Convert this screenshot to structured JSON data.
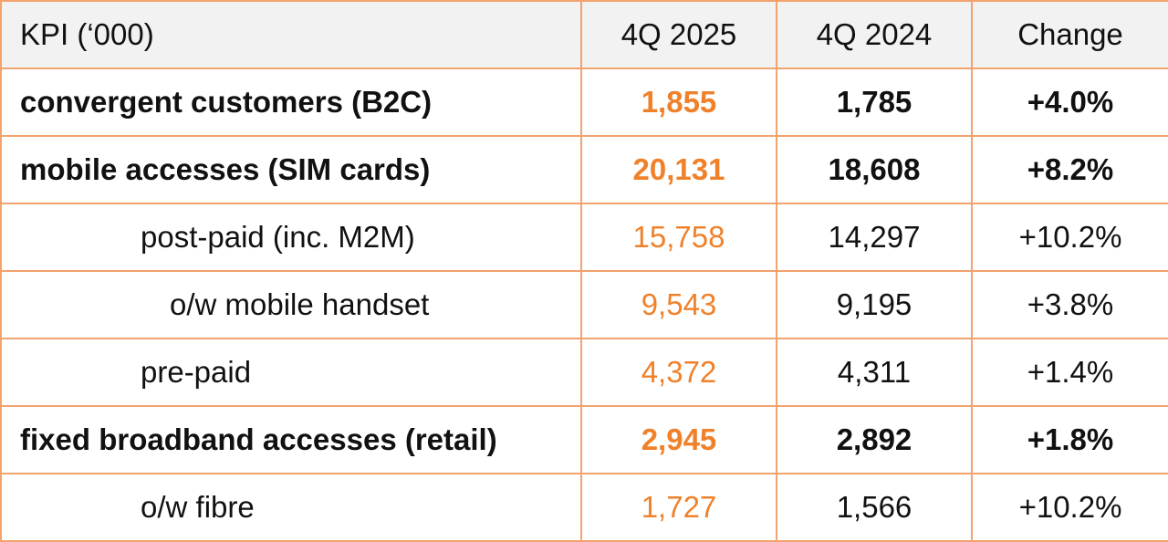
{
  "header": {
    "kpi": "KPI (‘000)",
    "col1": "4Q 2025",
    "col2": "4Q 2024",
    "col3": "Change"
  },
  "rows": [
    {
      "label": "convergent customers (B2C)",
      "q4_2025": "1,855",
      "q4_2024": "1,785",
      "change": "+4.0%"
    },
    {
      "label": "mobile accesses (SIM cards)",
      "q4_2025": "20,131",
      "q4_2024": "18,608",
      "change": "+8.2%"
    },
    {
      "label": "post-paid (inc. M2M)",
      "q4_2025": "15,758",
      "q4_2024": "14,297",
      "change": "+10.2%"
    },
    {
      "label": "o/w mobile handset",
      "q4_2025": "9,543",
      "q4_2024": "9,195",
      "change": "+3.8%"
    },
    {
      "label": "pre-paid",
      "q4_2025": "4,372",
      "q4_2024": "4,311",
      "change": "+1.4%"
    },
    {
      "label": "fixed broadband accesses (retail)",
      "q4_2025": "2,945",
      "q4_2024": "2,892",
      "change": "+1.8%"
    },
    {
      "label": "o/w fibre",
      "q4_2025": "1,727",
      "q4_2024": "1,566",
      "change": "+10.2%"
    }
  ],
  "colors": {
    "accent": "#f0812b",
    "border": "#f2a36e",
    "header_bg": "#f2f2f2"
  }
}
